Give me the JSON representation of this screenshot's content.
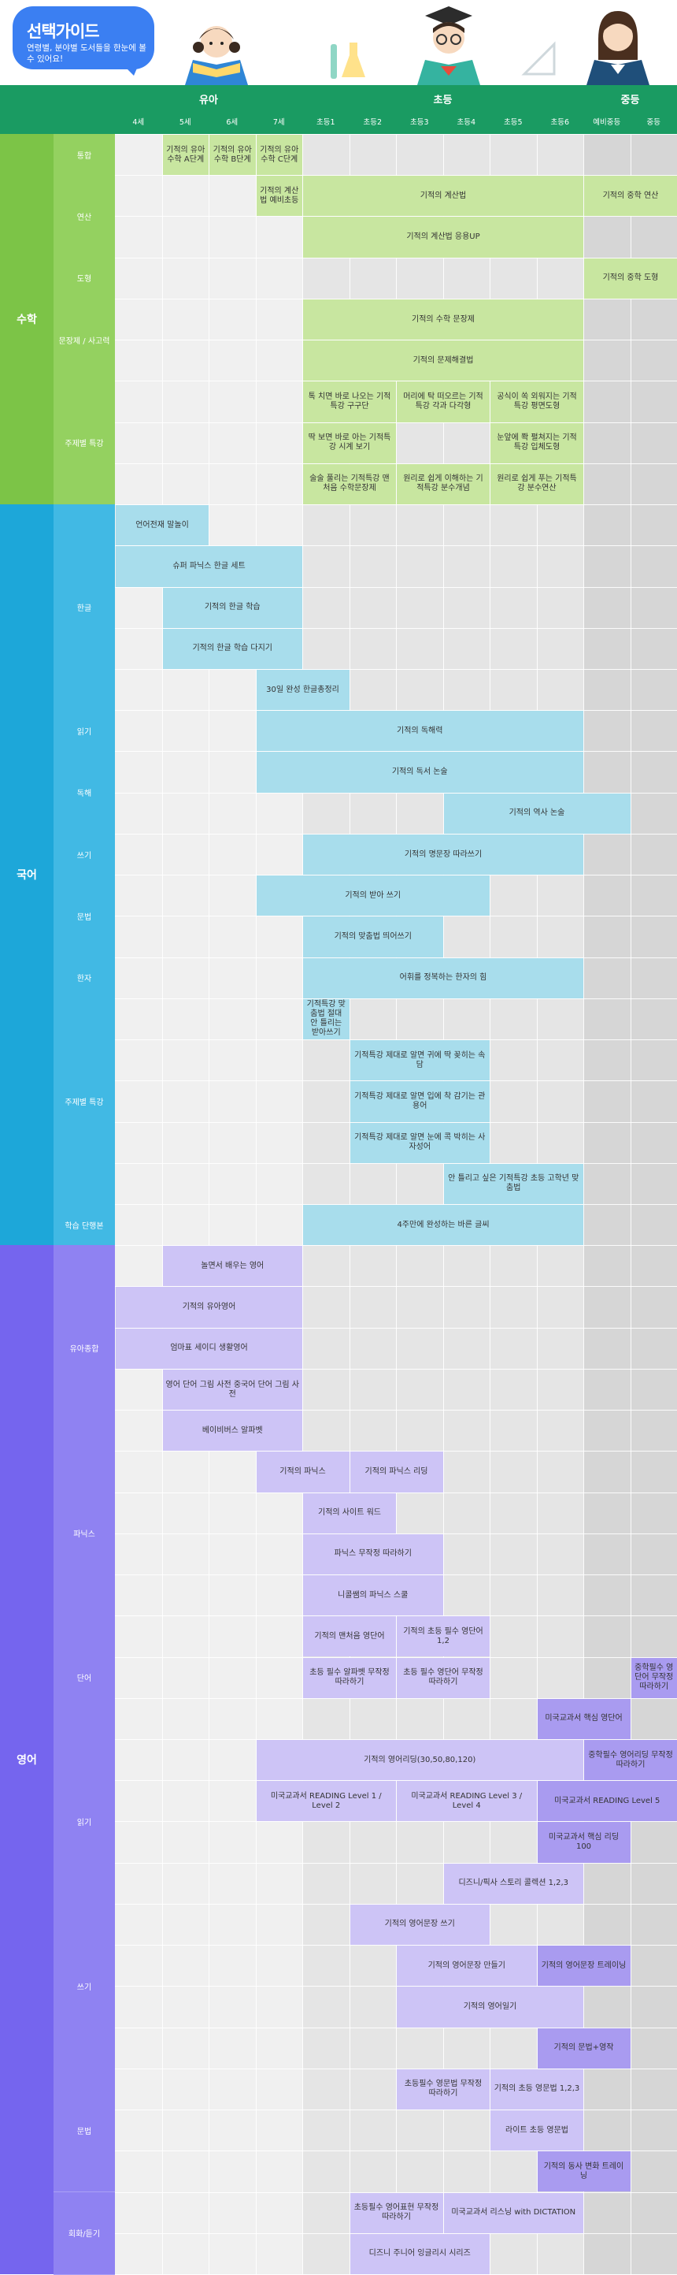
{
  "guide": {
    "title": "선택가이드",
    "subtitle": "연령별, 분야별 도서들을 한눈에 볼 수 있어요!"
  },
  "header": {
    "groups": [
      {
        "label": "유아",
        "start": 0,
        "span": 4
      },
      {
        "label": "초등",
        "start": 4,
        "span": 6
      },
      {
        "label": "중등",
        "start": 10,
        "span": 2
      }
    ],
    "ages": [
      "4세",
      "5세",
      "6세",
      "7세",
      "초등1",
      "초등2",
      "초등3",
      "초등4",
      "초등5",
      "초등6",
      "예비중등",
      "중등"
    ]
  },
  "colors": {
    "header_green": "#1a9b62",
    "math": "#7cc447",
    "math_cat": "#94d160",
    "math_bar": "#c8e6a0",
    "korean": "#1da7d9",
    "korean_cat": "#41b9e4",
    "korean_bar": "#a8ddec",
    "english": "#7565ee",
    "english_cat": "#8f82f2",
    "english_bar": "#cdc4f6",
    "english_bar_dark": "#a99bf0",
    "grid_pre": "#f0f0f0",
    "grid_elem": "#e5e5e5",
    "grid_mid": "#d6d6d6"
  },
  "subjects": [
    {
      "name": "수학",
      "key": "math",
      "categories": [
        {
          "name": "통합",
          "rows": 1
        },
        {
          "name": "연산",
          "rows": 2
        },
        {
          "name": "도형",
          "rows": 1
        },
        {
          "name": "문장제 / 사고력",
          "rows": 2
        },
        {
          "name": "주제별 특강",
          "rows": 3
        }
      ]
    },
    {
      "name": "국어",
      "key": "korean",
      "categories": [
        {
          "name": "한글",
          "rows": 5
        },
        {
          "name": "읽기",
          "rows": 1
        },
        {
          "name": "독해",
          "rows": 2
        },
        {
          "name": "쓰기",
          "rows": 1
        },
        {
          "name": "문법",
          "rows": 2
        },
        {
          "name": "한자",
          "rows": 1
        },
        {
          "name": "주제별 특강",
          "rows": 5
        },
        {
          "name": "학습 단행본",
          "rows": 1
        }
      ]
    },
    {
      "name": "영어",
      "key": "english",
      "categories": [
        {
          "name": "유아종합",
          "rows": 5
        },
        {
          "name": "파닉스",
          "rows": 4
        },
        {
          "name": "단어",
          "rows": 3
        },
        {
          "name": "읽기",
          "rows": 4
        },
        {
          "name": "쓰기",
          "rows": 4
        },
        {
          "name": "문법",
          "rows": 3
        },
        {
          "name": "회화/듣기",
          "rows": 2
        }
      ]
    }
  ],
  "books": [
    {
      "row": 0,
      "c": 1,
      "s": 1,
      "t": "기적의 유아수학 A단계",
      "k": "math"
    },
    {
      "row": 0,
      "c": 2,
      "s": 1,
      "t": "기적의 유아수학 B단계",
      "k": "math"
    },
    {
      "row": 0,
      "c": 3,
      "s": 1,
      "t": "기적의 유아수학 C단계",
      "k": "math"
    },
    {
      "row": 1,
      "c": 3,
      "s": 1,
      "t": "기적의 계산법 예비초등",
      "k": "math"
    },
    {
      "row": 1,
      "c": 4,
      "s": 6,
      "t": "기적의 계산법",
      "k": "math"
    },
    {
      "row": 1,
      "c": 10,
      "s": 2,
      "t": "기적의 중학 연산",
      "k": "math"
    },
    {
      "row": 2,
      "c": 4,
      "s": 6,
      "t": "기적의 계산법 응용UP",
      "k": "math"
    },
    {
      "row": 3,
      "c": 10,
      "s": 2,
      "t": "기적의 중학 도형",
      "k": "math"
    },
    {
      "row": 4,
      "c": 4,
      "s": 6,
      "t": "기적의 수학 문장제",
      "k": "math"
    },
    {
      "row": 5,
      "c": 4,
      "s": 6,
      "t": "기적의 문제해결법",
      "k": "math"
    },
    {
      "row": 6,
      "c": 4,
      "s": 2,
      "t": "톡 치면 바로 나오는 기적특강 구구단",
      "k": "math"
    },
    {
      "row": 6,
      "c": 6,
      "s": 2,
      "t": "머리에 탁 떠오르는 기적특강 각과 다각형",
      "k": "math"
    },
    {
      "row": 6,
      "c": 8,
      "s": 2,
      "t": "공식이 쏙 외워지는 기적특강 평면도형",
      "k": "math"
    },
    {
      "row": 7,
      "c": 4,
      "s": 2,
      "t": "딱 보면 바로 아는 기적특강 시계 보기",
      "k": "math"
    },
    {
      "row": 7,
      "c": 8,
      "s": 2,
      "t": "눈앞에 쫙 펼쳐지는 기적특강 입체도형",
      "k": "math"
    },
    {
      "row": 8,
      "c": 4,
      "s": 2,
      "t": "술술 풀리는 기적특강 맨처음 수학문장제",
      "k": "math"
    },
    {
      "row": 8,
      "c": 6,
      "s": 2,
      "t": "원리로 쉽게 이해하는 기적특강 분수개념",
      "k": "math"
    },
    {
      "row": 8,
      "c": 8,
      "s": 2,
      "t": "원리로 쉽게 푸는 기적특강 분수연산",
      "k": "math"
    },
    {
      "row": 9,
      "c": 0,
      "s": 2,
      "t": "언어전재 말놀이",
      "k": "korean"
    },
    {
      "row": 10,
      "c": 0,
      "s": 4,
      "t": "슈퍼 파닉스 한글 세트",
      "k": "korean"
    },
    {
      "row": 11,
      "c": 1,
      "s": 3,
      "t": "기적의 한글 학습",
      "k": "korean"
    },
    {
      "row": 12,
      "c": 1,
      "s": 3,
      "t": "기적의 한글 학습 다지기",
      "k": "korean"
    },
    {
      "row": 13,
      "c": 3,
      "s": 2,
      "t": "30일 완성 한글총정리",
      "k": "korean"
    },
    {
      "row": 14,
      "c": 3,
      "s": 7,
      "t": "기적의 독해력",
      "k": "korean"
    },
    {
      "row": 15,
      "c": 3,
      "s": 7,
      "t": "기적의 독서 논술",
      "k": "korean"
    },
    {
      "row": 16,
      "c": 7,
      "s": 4,
      "t": "기적의 역사 논술",
      "k": "korean"
    },
    {
      "row": 17,
      "c": 4,
      "s": 6,
      "t": "기적의 명문장 따라쓰기",
      "k": "korean"
    },
    {
      "row": 18,
      "c": 3,
      "s": 5,
      "t": "기적의 받아 쓰기",
      "k": "korean"
    },
    {
      "row": 19,
      "c": 4,
      "s": 3,
      "t": "기적의 맞춤법 띄어쓰기",
      "k": "korean"
    },
    {
      "row": 20,
      "c": 4,
      "s": 6,
      "t": "어휘를 정복하는 한자의 힘",
      "k": "korean"
    },
    {
      "row": 21,
      "c": 4,
      "s": 1,
      "t": "기적특강 맞춤법 절대 안 틀리는 받아쓰기",
      "k": "korean"
    },
    {
      "row": 22,
      "c": 5,
      "s": 3,
      "t": "기적특강 제대로 알면 귀에 딱 꽂히는 속담",
      "k": "korean"
    },
    {
      "row": 23,
      "c": 5,
      "s": 3,
      "t": "기적특강 제대로 알면 입에 착 감기는 관용어",
      "k": "korean"
    },
    {
      "row": 24,
      "c": 5,
      "s": 3,
      "t": "기적특강 제대로 알면 눈에 콕 박히는 사자성어",
      "k": "korean"
    },
    {
      "row": 25,
      "c": 7,
      "s": 3,
      "t": "안 틀리고 싶은 기적특강 초등 고학년 맞춤법",
      "k": "korean"
    },
    {
      "row": 26,
      "c": 4,
      "s": 6,
      "t": "4주만에 완성하는 바른 글씨",
      "k": "korean"
    },
    {
      "row": 27,
      "c": 1,
      "s": 3,
      "t": "놀면서 배우는 영어",
      "k": "english"
    },
    {
      "row": 28,
      "c": 0,
      "s": 4,
      "t": "기적의 유아영어",
      "k": "english"
    },
    {
      "row": 29,
      "c": 0,
      "s": 4,
      "t": "엄마표 세이디 생활영어",
      "k": "english"
    },
    {
      "row": 30,
      "c": 1,
      "s": 3,
      "t": "영어 단어 그림 사전 중국어 단어 그림 사전",
      "k": "english"
    },
    {
      "row": 31,
      "c": 1,
      "s": 3,
      "t": "베이비버스 알파벳",
      "k": "english"
    },
    {
      "row": 32,
      "c": 3,
      "s": 2,
      "t": "기적의 파닉스",
      "k": "english"
    },
    {
      "row": 32,
      "c": 5,
      "s": 2,
      "t": "기적의 파닉스 리딩",
      "k": "english"
    },
    {
      "row": 33,
      "c": 4,
      "s": 2,
      "t": "기적의 사이트 워드",
      "k": "english"
    },
    {
      "row": 34,
      "c": 4,
      "s": 3,
      "t": "파닉스 무작정 따라하기",
      "k": "english"
    },
    {
      "row": 35,
      "c": 4,
      "s": 3,
      "t": "니콜쌤의 파닉스 스쿨",
      "k": "english"
    },
    {
      "row": 36,
      "c": 4,
      "s": 2,
      "t": "기적의 맨처음 영단어",
      "k": "english"
    },
    {
      "row": 36,
      "c": 6,
      "s": 2,
      "t": "기적의 초등 필수 영단어 1,2",
      "k": "english"
    },
    {
      "row": 37,
      "c": 4,
      "s": 2,
      "t": "초등 필수 알파벳 무작정 따라하기",
      "k": "english"
    },
    {
      "row": 37,
      "c": 6,
      "s": 2,
      "t": "초등 필수 영단어 무작정 따라하기",
      "k": "english"
    },
    {
      "row": 37,
      "c": 11,
      "s": 1,
      "t": "중학필수 영단어 무작정 따라하기",
      "k": "english",
      "dk": true
    },
    {
      "row": 38,
      "c": 9,
      "s": 2,
      "t": "미국교과서 핵심 영단어",
      "k": "english",
      "dk": true
    },
    {
      "row": 39,
      "c": 3,
      "s": 7,
      "t": "기적의 영어리딩(30,50,80,120)",
      "k": "english"
    },
    {
      "row": 39,
      "c": 10,
      "s": 2,
      "t": "중학필수 영어리딩 무작정 따라하기",
      "k": "english",
      "dk": true
    },
    {
      "row": 40,
      "c": 3,
      "s": 3,
      "t": "미국교과서 READING Level 1 / Level 2",
      "k": "english"
    },
    {
      "row": 40,
      "c": 6,
      "s": 3,
      "t": "미국교과서 READING Level 3 / Level 4",
      "k": "english"
    },
    {
      "row": 40,
      "c": 9,
      "s": 3,
      "t": "미국교과서 READING Level 5",
      "k": "english",
      "dk": true
    },
    {
      "row": 41,
      "c": 9,
      "s": 2,
      "t": "미국교과서 핵심 리딩 100",
      "k": "english",
      "dk": true
    },
    {
      "row": 42,
      "c": 7,
      "s": 3,
      "t": "디즈니/픽사 스토리 콜렉션 1,2,3",
      "k": "english"
    },
    {
      "row": 43,
      "c": 5,
      "s": 3,
      "t": "기적의 영어문장 쓰기",
      "k": "english"
    },
    {
      "row": 44,
      "c": 6,
      "s": 3,
      "t": "기적의 영어문장 만들기",
      "k": "english"
    },
    {
      "row": 44,
      "c": 9,
      "s": 2,
      "t": "기적의 영어문장 트레이닝",
      "k": "english",
      "dk": true
    },
    {
      "row": 45,
      "c": 6,
      "s": 4,
      "t": "기적의 영어일기",
      "k": "english"
    },
    {
      "row": 46,
      "c": 9,
      "s": 2,
      "t": "기적의 문법+영작",
      "k": "english",
      "dk": true
    },
    {
      "row": 47,
      "c": 6,
      "s": 2,
      "t": "초등필수 영문법 무작정 따라하기",
      "k": "english"
    },
    {
      "row": 47,
      "c": 8,
      "s": 2,
      "t": "기적의 초등 영문법 1,2,3",
      "k": "english"
    },
    {
      "row": 48,
      "c": 8,
      "s": 2,
      "t": "라이트 초등 영문법",
      "k": "english"
    },
    {
      "row": 49,
      "c": 9,
      "s": 2,
      "t": "기적의 동사 변화 트레이닝",
      "k": "english",
      "dk": true
    },
    {
      "row": 50,
      "c": 5,
      "s": 2,
      "t": "초등필수 영어표현 무작정 따라하기",
      "k": "english"
    },
    {
      "row": 50,
      "c": 7,
      "s": 3,
      "t": "미국교과서 리스닝 with DICTATION",
      "k": "english"
    },
    {
      "row": 51,
      "c": 5,
      "s": 3,
      "t": "디즈니 주니어 잉글리시 시리즈",
      "k": "english"
    }
  ]
}
